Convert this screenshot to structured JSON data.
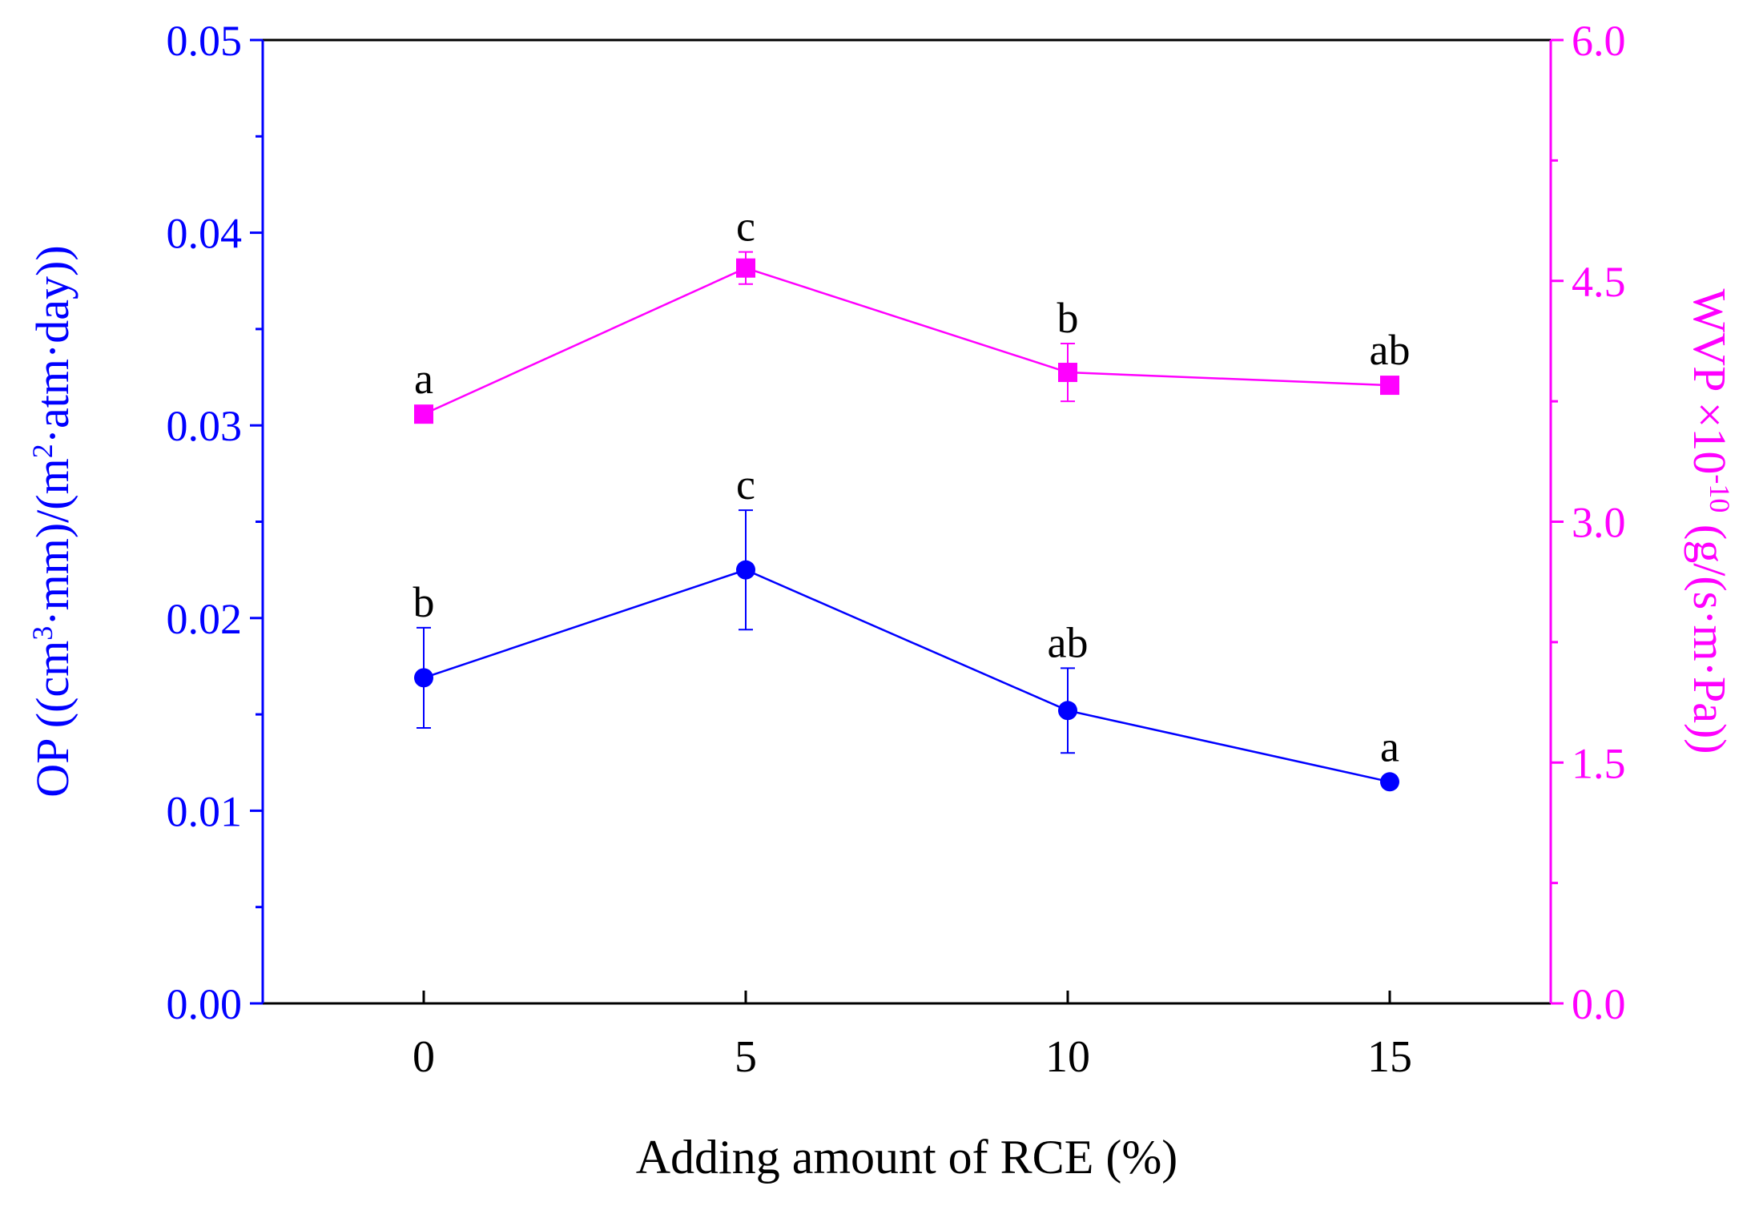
{
  "chart_data": {
    "type": "line",
    "x": [
      0,
      5,
      10,
      15
    ],
    "x_ticks": [
      "0",
      "5",
      "10",
      "15"
    ],
    "xlim": [
      -2.5,
      17.5
    ],
    "xlabel": "Adding amount of RCE (%)",
    "y_left": {
      "label_main": "OP ((cm",
      "label_sup1": "3",
      "label_mid": "·mm)/(m",
      "label_sup2": "2",
      "label_end": "·atm·day))",
      "lim": [
        0,
        0.05
      ],
      "ticks": [
        "0.00",
        "0.01",
        "0.02",
        "0.03",
        "0.04",
        "0.05"
      ],
      "tick_values": [
        0,
        0.01,
        0.02,
        0.03,
        0.04,
        0.05
      ],
      "color": "#0000ff"
    },
    "y_right": {
      "label_main": "WVP ×10",
      "label_sup": "-10",
      "label_end": " (g/(s·m·Pa))",
      "lim": [
        0,
        6.0
      ],
      "ticks": [
        "0.0",
        "1.5",
        "3.0",
        "4.5",
        "6.0"
      ],
      "tick_values": [
        0,
        1.5,
        3.0,
        4.5,
        6.0
      ],
      "color": "#ff00ff"
    },
    "series": [
      {
        "name": "OP",
        "axis": "left",
        "marker": "circle",
        "color": "#0000ff",
        "values": [
          0.0169,
          0.0225,
          0.0152,
          0.0115
        ],
        "errors": [
          0.0026,
          0.0031,
          0.0022,
          0.0003
        ],
        "labels": [
          "b",
          "c",
          "ab",
          "a"
        ]
      },
      {
        "name": "WVP",
        "axis": "right",
        "marker": "square",
        "color": "#ff00ff",
        "values": [
          3.67,
          4.58,
          3.93,
          3.85
        ],
        "errors": [
          0.03,
          0.1,
          0.18,
          0.04
        ],
        "labels": [
          "a",
          "c",
          "b",
          "ab"
        ]
      }
    ]
  }
}
